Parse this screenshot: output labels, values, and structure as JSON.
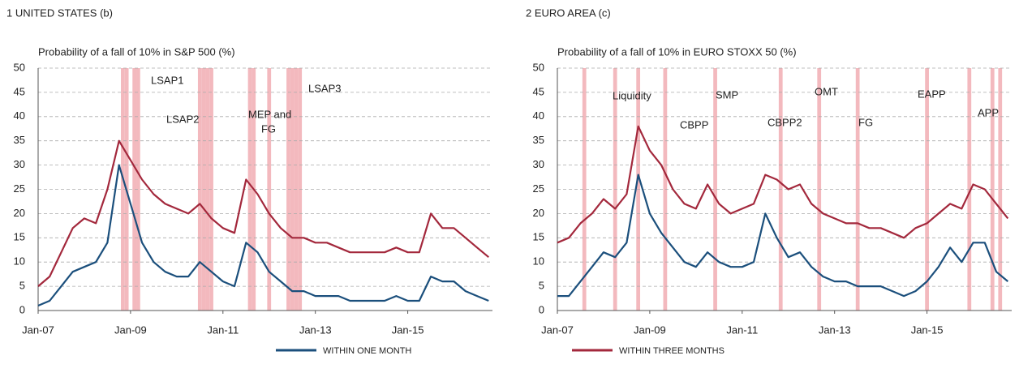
{
  "chart_data": [
    {
      "type": "line",
      "title": "1  UNITED STATES (b)",
      "subtitle": "Probability of a fall of 10% in S&P 500 (%)",
      "x": [
        "Jan-07",
        "Apr-07",
        "Jul-07",
        "Oct-07",
        "Jan-08",
        "Apr-08",
        "Jul-08",
        "Oct-08",
        "Jan-09",
        "Apr-09",
        "Jul-09",
        "Oct-09",
        "Jan-10",
        "Apr-10",
        "Jul-10",
        "Oct-10",
        "Jan-11",
        "Apr-11",
        "Jul-11",
        "Oct-11",
        "Jan-12",
        "Apr-12",
        "Jul-12",
        "Oct-12",
        "Jan-13",
        "Apr-13",
        "Jul-13",
        "Oct-13",
        "Jan-14",
        "Apr-14",
        "Jul-14",
        "Oct-14",
        "Jan-15",
        "Apr-15",
        "Jul-15",
        "Oct-15",
        "Jan-16",
        "Apr-16",
        "Jul-16",
        "Oct-16"
      ],
      "series": [
        {
          "name": "WITHIN ONE MONTH",
          "color": "#1b4f7c",
          "values": [
            1,
            2,
            5,
            8,
            9,
            10,
            14,
            30,
            22,
            14,
            10,
            8,
            7,
            7,
            10,
            8,
            6,
            5,
            14,
            12,
            8,
            6,
            4,
            4,
            3,
            3,
            3,
            2,
            2,
            2,
            2,
            3,
            2,
            2,
            7,
            6,
            6,
            4,
            3,
            2
          ]
        },
        {
          "name": "WITHIN THREE MONTHS",
          "color": "#a3283c",
          "values": [
            5,
            7,
            12,
            17,
            19,
            18,
            25,
            35,
            31,
            27,
            24,
            22,
            21,
            20,
            22,
            19,
            17,
            16,
            27,
            24,
            20,
            17,
            15,
            15,
            14,
            14,
            13,
            12,
            12,
            12,
            12,
            13,
            12,
            12,
            20,
            17,
            17,
            15,
            13,
            11
          ]
        }
      ],
      "xlim": [
        "Jan-07",
        "Nov-16"
      ],
      "xticks": [
        "Jan-07",
        "Jan-09",
        "Jan-11",
        "Jan-13",
        "Jan-15"
      ],
      "ylim": [
        0,
        50
      ],
      "yticks": [
        0,
        5,
        10,
        15,
        20,
        25,
        30,
        35,
        40,
        45,
        50
      ],
      "grid": true,
      "bands": [
        "Nov-08",
        "Dec-08",
        "Feb-09",
        "Mar-09",
        "Jul-10",
        "Aug-10",
        "Sep-10",
        "Oct-10",
        "Aug-11",
        "Sep-11",
        "Jan-12",
        "Jun-12",
        "Jul-12",
        "Aug-12",
        "Sep-12"
      ],
      "band_color": "#f3b9be",
      "annotations": [
        [
          "LSAP1"
        ],
        [
          "LSAP2"
        ],
        [
          "MEP and",
          "FG"
        ],
        [
          "LSAP3"
        ]
      ]
    },
    {
      "type": "line",
      "title": "2  EURO AREA (c)",
      "subtitle": "Probability of a fall of 10% in  EURO STOXX 50 (%)",
      "x": [
        "Jan-07",
        "Apr-07",
        "Jul-07",
        "Oct-07",
        "Jan-08",
        "Apr-08",
        "Jul-08",
        "Oct-08",
        "Jan-09",
        "Apr-09",
        "Jul-09",
        "Oct-09",
        "Jan-10",
        "Apr-10",
        "Jul-10",
        "Oct-10",
        "Jan-11",
        "Apr-11",
        "Jul-11",
        "Oct-11",
        "Jan-12",
        "Apr-12",
        "Jul-12",
        "Oct-12",
        "Jan-13",
        "Apr-13",
        "Jul-13",
        "Oct-13",
        "Jan-14",
        "Apr-14",
        "Jul-14",
        "Oct-14",
        "Jan-15",
        "Apr-15",
        "Jul-15",
        "Oct-15",
        "Jan-16",
        "Apr-16",
        "Jul-16",
        "Oct-16"
      ],
      "series": [
        {
          "name": "WITHIN ONE MONTH",
          "color": "#1b4f7c",
          "values": [
            3,
            3,
            6,
            9,
            12,
            11,
            14,
            28,
            20,
            16,
            13,
            10,
            9,
            12,
            10,
            9,
            9,
            10,
            20,
            15,
            11,
            12,
            9,
            7,
            6,
            6,
            5,
            5,
            5,
            4,
            3,
            4,
            6,
            9,
            13,
            10,
            14,
            14,
            8,
            6
          ]
        },
        {
          "name": "WITHIN THREE MONTHS",
          "color": "#a3283c",
          "values": [
            14,
            15,
            18,
            20,
            23,
            21,
            24,
            38,
            33,
            30,
            25,
            22,
            21,
            26,
            22,
            20,
            21,
            22,
            28,
            27,
            25,
            26,
            22,
            20,
            19,
            18,
            18,
            17,
            17,
            16,
            15,
            17,
            18,
            20,
            22,
            21,
            26,
            25,
            22,
            19
          ]
        }
      ],
      "xlim": [
        "Jan-07",
        "Nov-16"
      ],
      "xticks": [
        "Jan-07",
        "Jan-09",
        "Jan-11",
        "Jan-13",
        "Jan-15"
      ],
      "ylim": [
        0,
        50
      ],
      "yticks": [
        0,
        5,
        10,
        15,
        20,
        25,
        30,
        35,
        40,
        45,
        50
      ],
      "grid": true,
      "bands": [
        "Aug-07",
        "Apr-08",
        "Oct-08",
        "May-09",
        "Jun-10",
        "Nov-11",
        "Sep-12",
        "Jul-13",
        "Jan-15",
        "Dec-15",
        "Jun-16",
        "Aug-16"
      ],
      "band_color": "#f3b9be",
      "annotations": [
        [
          "Liquidity"
        ],
        [
          "CBPP"
        ],
        [
          "SMP"
        ],
        [
          "CBPP2"
        ],
        [
          "OMT"
        ],
        [
          "FG"
        ],
        [
          "EAPP"
        ],
        [
          "APP"
        ]
      ]
    }
  ]
}
